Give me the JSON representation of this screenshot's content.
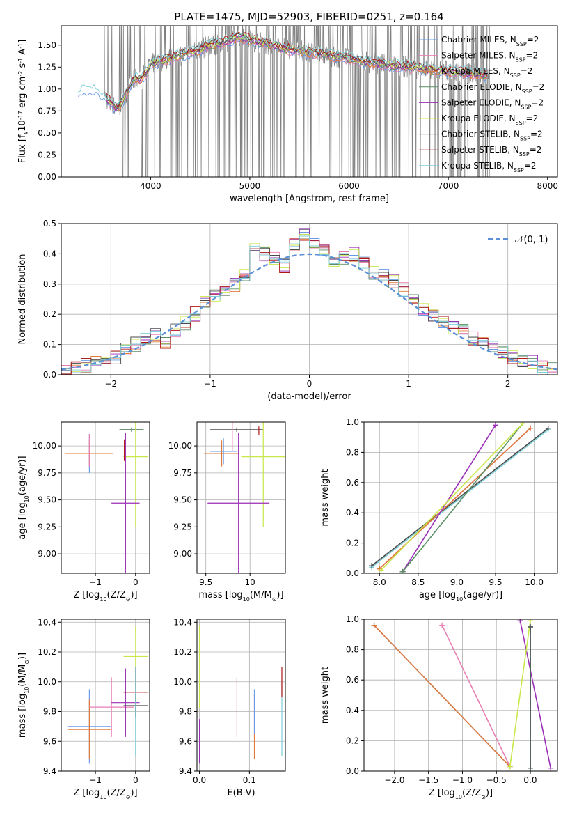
{
  "title": "PLATE=1475, MJD=52903, FIBERID=0251, z=0.164",
  "colors": {
    "data_spectrum": "#808080",
    "normal_curve": "#5b8fd6",
    "grid": "#b0b0b0",
    "model_colors": [
      "#6a9be8",
      "#e87fb4",
      "#e07a3a",
      "#5a8f64",
      "#9a2fb5",
      "#c8e84a",
      "#4a4a4a",
      "#b01818",
      "#7ecfd9"
    ]
  },
  "chart_data": [
    {
      "id": "spectrum",
      "type": "line",
      "xlabel": "wavelength [Angstrom, rest frame]",
      "ylabel": "Flux [f$_\\lambda$10$^{-17}$ erg cm$^{-2}$ s$^{-1}$ A$^{-1}$]",
      "xlim": [
        3100,
        8100
      ],
      "ylim": [
        0,
        1.72
      ],
      "xticks": [
        4000,
        5000,
        6000,
        7000,
        8000
      ],
      "yticks": [
        "0.00",
        "0.25",
        "0.50",
        "0.75",
        "1.00",
        "1.25",
        "1.50"
      ],
      "grid": false,
      "legend": "upper right",
      "data_note": "noisy observed spectrum drawn in grey",
      "series": [
        {
          "name": "Chabrier MILES, N$_{SSP}$=2"
        },
        {
          "name": "Salpeter MILES, N$_{SSP}$=2"
        },
        {
          "name": "Kroupa MILES, N$_{SSP}$=2"
        },
        {
          "name": "Chabrier ELODIE, N$_{SSP}$=2"
        },
        {
          "name": "Salpeter ELODIE, N$_{SSP}$=2"
        },
        {
          "name": "Kroupa ELODIE, N$_{SSP}$=2"
        },
        {
          "name": "Chabrier STELIB, N$_{SSP}$=2"
        },
        {
          "name": "Salpeter STELIB, N$_{SSP}$=2"
        },
        {
          "name": "Kroupa STELIB, N$_{SSP}$=2"
        }
      ],
      "model_curve": {
        "x": [
          3270,
          3400,
          3550,
          3650,
          3700,
          3750,
          3800,
          3850,
          3900,
          3950,
          4000,
          4100,
          4200,
          4300,
          4400,
          4500,
          4600,
          4700,
          4800,
          4900,
          5000,
          5200,
          5400,
          5600,
          5800,
          6000,
          6200,
          6400,
          6600,
          6800,
          7000,
          7200,
          7400
        ],
        "y": [
          0.95,
          1.0,
          0.9,
          0.78,
          0.82,
          0.95,
          1.05,
          1.12,
          1.1,
          1.18,
          1.28,
          1.32,
          1.35,
          1.38,
          1.42,
          1.45,
          1.5,
          1.52,
          1.55,
          1.6,
          1.56,
          1.5,
          1.45,
          1.42,
          1.38,
          1.35,
          1.3,
          1.27,
          1.25,
          1.22,
          1.2,
          1.18,
          1.15
        ]
      }
    },
    {
      "id": "residuals",
      "type": "line",
      "xlabel": "(data-model)/error",
      "ylabel": "Normed distribution",
      "xlim": [
        -2.5,
        2.5
      ],
      "ylim": [
        0,
        0.5
      ],
      "xticks": [
        -2,
        -1,
        0,
        1,
        2
      ],
      "yticks": [
        "0.0",
        "0.1",
        "0.2",
        "0.3",
        "0.4",
        "0.5"
      ],
      "grid": true,
      "legend": "upper right",
      "normal_label": "𝒩(0, 1)",
      "hist_bins": [
        -2.5,
        -2.4,
        -2.3,
        -2.2,
        -2.1,
        -2.0,
        -1.9,
        -1.8,
        -1.7,
        -1.6,
        -1.5,
        -1.4,
        -1.3,
        -1.2,
        -1.1,
        -1.0,
        -0.9,
        -0.8,
        -0.7,
        -0.6,
        -0.5,
        -0.4,
        -0.3,
        -0.2,
        -0.1,
        0.0,
        0.1,
        0.2,
        0.3,
        0.4,
        0.5,
        0.6,
        0.7,
        0.8,
        0.9,
        1.0,
        1.1,
        1.2,
        1.3,
        1.4,
        1.5,
        1.6,
        1.7,
        1.8,
        1.9,
        2.0,
        2.1,
        2.2,
        2.3,
        2.4,
        2.5
      ],
      "hist_values": [
        0.01,
        0.02,
        0.03,
        0.04,
        0.05,
        0.06,
        0.08,
        0.1,
        0.12,
        0.13,
        0.11,
        0.15,
        0.17,
        0.2,
        0.24,
        0.26,
        0.27,
        0.3,
        0.33,
        0.41,
        0.4,
        0.38,
        0.36,
        0.43,
        0.46,
        0.44,
        0.42,
        0.38,
        0.39,
        0.4,
        0.37,
        0.34,
        0.33,
        0.31,
        0.28,
        0.25,
        0.22,
        0.2,
        0.18,
        0.16,
        0.15,
        0.12,
        0.1,
        0.09,
        0.07,
        0.06,
        0.05,
        0.04,
        0.03,
        0.02
      ]
    },
    {
      "id": "age-vs-Z",
      "type": "scatter",
      "xlabel": "Z [log$_{10}$(Z/Z$_\\odot$)]",
      "ylabel": "age  [log$_{10}$(age/yr)]",
      "xlim": [
        -1.85,
        0.35
      ],
      "ylim": [
        8.82,
        10.22
      ],
      "xticks": [
        -1,
        0
      ],
      "yticks": [
        "9.00",
        "9.25",
        "9.50",
        "9.75",
        "10.00"
      ],
      "grid": true,
      "errorbars": [
        {
          "x": -0.1,
          "y": 10.15,
          "xerr": 0.3,
          "yerr": 0.02,
          "c": 6
        },
        {
          "x": -0.1,
          "y": 10.15,
          "xerr": 0.3,
          "yerr": 0.02,
          "c": 3
        },
        {
          "x": -1.15,
          "y": 9.93,
          "xerr": 0.6,
          "yerr": 0.18,
          "c": 0
        },
        {
          "x": -1.15,
          "y": 9.93,
          "xerr": 0.6,
          "yerr": 0.12,
          "c": 2
        },
        {
          "x": -1.15,
          "y": 9.96,
          "xerr": 0.0,
          "yerr": 0.15,
          "c": 1
        },
        {
          "x": 0.0,
          "y": 9.9,
          "xerr": 0.3,
          "yerr": 0.65,
          "c": 5
        },
        {
          "x": -0.25,
          "y": 9.47,
          "xerr": 0.35,
          "yerr": 0.65,
          "c": 4
        },
        {
          "x": -0.28,
          "y": 9.96,
          "xerr": 0.0,
          "yerr": 0.1,
          "c": 7
        }
      ]
    },
    {
      "id": "age-vs-mass",
      "type": "scatter",
      "xlabel": "mass [log$_{10}$(M/M$_\\odot$)]",
      "ylabel": "",
      "xlim": [
        9.4,
        10.4
      ],
      "ylim": [
        8.82,
        10.22
      ],
      "xticks": [
        9.5,
        10.0
      ],
      "yticks": [
        "9.00",
        "9.25",
        "9.50",
        "9.75",
        "10.00"
      ],
      "grid": true,
      "errorbars": [
        {
          "x": 9.85,
          "y": 10.15,
          "xerr": 0.3,
          "yerr": 0.02,
          "c": 6
        },
        {
          "x": 9.68,
          "y": 9.93,
          "xerr": 0.2,
          "yerr": 0.12,
          "c": 2
        },
        {
          "x": 9.7,
          "y": 9.95,
          "xerr": 0.15,
          "yerr": 0.12,
          "c": 0
        },
        {
          "x": 10.15,
          "y": 9.9,
          "xerr": 0.25,
          "yerr": 0.65,
          "c": 5
        },
        {
          "x": 9.87,
          "y": 9.47,
          "xerr": 0.35,
          "yerr": 0.65,
          "c": 4
        },
        {
          "x": 10.1,
          "y": 10.14,
          "xerr": 0.0,
          "yerr": 0.04,
          "c": 7
        },
        {
          "x": 9.8,
          "y": 10.1,
          "xerr": 0.0,
          "yerr": 0.15,
          "c": 1
        }
      ]
    },
    {
      "id": "weight-vs-age",
      "type": "line",
      "xlabel": "age  [log$_{10}$(age/yr)]",
      "ylabel": "mass weight",
      "xlim": [
        7.8,
        10.3
      ],
      "ylim": [
        0,
        1.0
      ],
      "xticks": [
        "8.0",
        "8.5",
        "9.0",
        "9.5",
        "10.0"
      ],
      "yticks": [
        "0.0",
        "0.2",
        "0.4",
        "0.6",
        "0.8",
        "1.0"
      ],
      "grid": true,
      "series": [
        {
          "x": [
            7.9,
            10.18
          ],
          "y": [
            0.04,
            0.95
          ],
          "c": 8
        },
        {
          "x": [
            7.9,
            10.18
          ],
          "y": [
            0.05,
            0.96
          ],
          "c": 6
        },
        {
          "x": [
            8.0,
            9.95
          ],
          "y": [
            0.03,
            0.96
          ],
          "c": 1
        },
        {
          "x": [
            8.0,
            9.95
          ],
          "y": [
            0.03,
            0.96
          ],
          "c": 2
        },
        {
          "x": [
            8.3,
            9.5
          ],
          "y": [
            0.01,
            0.98
          ],
          "c": 4
        },
        {
          "x": [
            8.3,
            9.85
          ],
          "y": [
            0.01,
            0.99
          ],
          "c": 3
        },
        {
          "x": [
            8.02,
            9.85
          ],
          "y": [
            0.02,
            0.99
          ],
          "c": 5
        }
      ]
    },
    {
      "id": "mass-vs-Z",
      "type": "scatter",
      "xlabel": "Z [log$_{10}$(Z/Z$_\\odot$)]",
      "ylabel": "mass [log$_{10}$(M/M$_\\odot$)]",
      "xlim": [
        -1.85,
        0.35
      ],
      "ylim": [
        9.4,
        10.42
      ],
      "xticks": [
        -1,
        0
      ],
      "yticks": [
        "9.4",
        "9.6",
        "9.8",
        "10.0",
        "10.2",
        "10.4"
      ],
      "grid": true,
      "errorbars": [
        {
          "x": -1.15,
          "y": 9.7,
          "xerr": 0.55,
          "yerr": 0.25,
          "c": 0
        },
        {
          "x": -1.15,
          "y": 9.68,
          "xerr": 0.55,
          "yerr": 0.2,
          "c": 2
        },
        {
          "x": -0.6,
          "y": 9.83,
          "xerr": 0.55,
          "yerr": 0.2,
          "c": 1
        },
        {
          "x": 0.0,
          "y": 10.17,
          "xerr": 0.3,
          "yerr": 0.2,
          "c": 5
        },
        {
          "x": -0.25,
          "y": 9.86,
          "xerr": 0.35,
          "yerr": 0.23,
          "c": 4
        },
        {
          "x": 0.0,
          "y": 9.93,
          "xerr": 0.3,
          "yerr": 0.17,
          "c": 7
        },
        {
          "x": 0.0,
          "y": 9.84,
          "xerr": 0.3,
          "yerr": 0.08,
          "c": 6
        },
        {
          "x": 0.0,
          "y": 9.8,
          "xerr": 0.0,
          "yerr": 0.3,
          "c": 8
        }
      ]
    },
    {
      "id": "mass-vs-EBV",
      "type": "scatter",
      "xlabel": "E(B-V)",
      "ylabel": "",
      "xlim": [
        -0.005,
        0.172
      ],
      "ylim": [
        9.4,
        10.42
      ],
      "xticks": [
        "0.0",
        "0.1"
      ],
      "yticks": [
        "9.4",
        "9.6",
        "9.8",
        "10.0",
        "10.2",
        "10.4"
      ],
      "grid": true,
      "errorbars": [
        {
          "x": 0.0,
          "y": 10.1,
          "xerr": 0.0,
          "yerr": 0.28,
          "c": 5
        },
        {
          "x": 0.0,
          "y": 9.6,
          "xerr": 0.0,
          "yerr": 0.15,
          "c": 4
        },
        {
          "x": 0.075,
          "y": 9.83,
          "xerr": 0.0,
          "yerr": 0.2,
          "c": 1
        },
        {
          "x": 0.11,
          "y": 9.7,
          "xerr": 0.0,
          "yerr": 0.22,
          "c": 2
        },
        {
          "x": 0.11,
          "y": 9.8,
          "xerr": 0.0,
          "yerr": 0.15,
          "c": 0
        },
        {
          "x": 0.165,
          "y": 9.75,
          "xerr": 0.0,
          "yerr": 0.25,
          "c": 8
        },
        {
          "x": 0.165,
          "y": 10.0,
          "xerr": 0.0,
          "yerr": 0.1,
          "c": 7
        }
      ]
    },
    {
      "id": "weight-vs-Z",
      "type": "line",
      "xlabel": "Z [log$_{10}$(Z/Z$_\\odot$)]",
      "ylabel": "mass weight",
      "xlim": [
        -2.45,
        0.4
      ],
      "ylim": [
        0,
        1.0
      ],
      "xticks": [
        "-2.0",
        "-1.5",
        "-1.0",
        "-0.5",
        "0.0"
      ],
      "yticks": [
        "0.0",
        "0.2",
        "0.4",
        "0.6",
        "0.8",
        "1.0"
      ],
      "grid": true,
      "series": [
        {
          "x": [
            -2.3,
            -0.3
          ],
          "y": [
            0.96,
            0.03
          ],
          "c": 0
        },
        {
          "x": [
            -2.3,
            -0.3
          ],
          "y": [
            0.96,
            0.03
          ],
          "c": 2
        },
        {
          "x": [
            -1.3,
            -0.3
          ],
          "y": [
            0.96,
            0.03
          ],
          "c": 1
        },
        {
          "x": [
            -0.15,
            0.3
          ],
          "y": [
            0.99,
            0.02
          ],
          "c": 4
        },
        {
          "x": [
            -0.3,
            0.0
          ],
          "y": [
            0.03,
            0.99
          ],
          "c": 5
        },
        {
          "x": [
            0.0,
            0.0
          ],
          "y": [
            0.02,
            0.95
          ],
          "c": 3
        },
        {
          "x": [
            0.0,
            0.0
          ],
          "y": [
            0.02,
            0.95
          ],
          "c": 8
        },
        {
          "x": [
            0.0,
            0.0
          ],
          "y": [
            0.02,
            0.95
          ],
          "c": 6
        }
      ]
    }
  ]
}
